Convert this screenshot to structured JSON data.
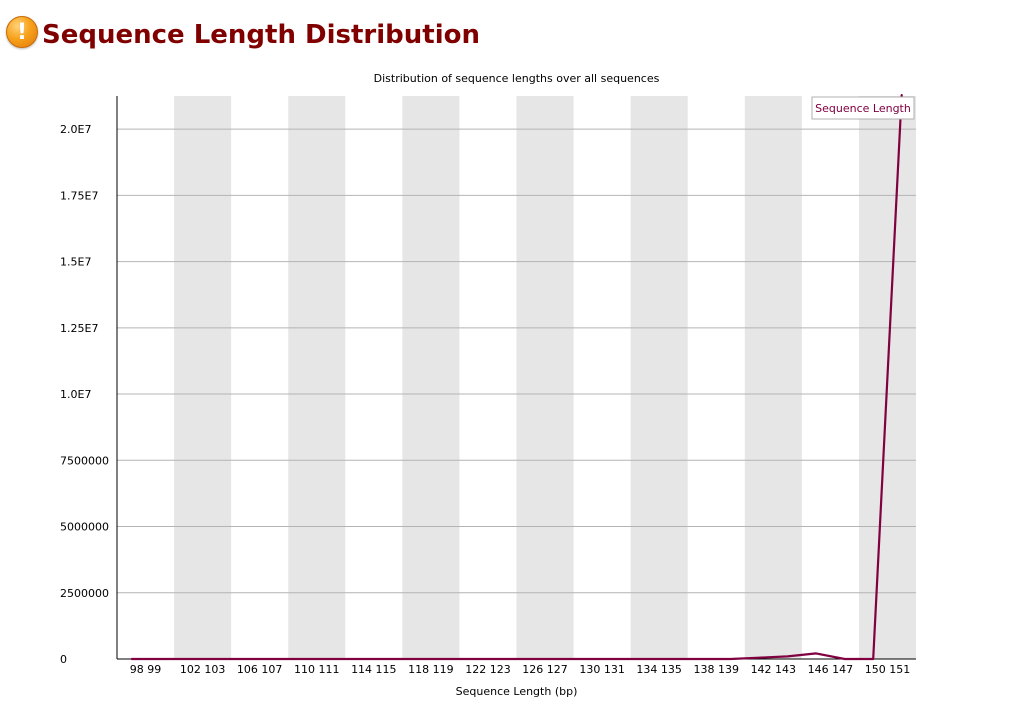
{
  "page": {
    "title": "Sequence Length Distribution",
    "status_icon": "warning-icon"
  },
  "chart_data": {
    "type": "line",
    "title": "Distribution of sequence lengths over all sequences",
    "xlabel": "Sequence Length (bp)",
    "ylabel": "",
    "categories": [
      "98",
      "99",
      "102",
      "103",
      "106",
      "107",
      "110",
      "111",
      "114",
      "115",
      "118",
      "119",
      "122",
      "123",
      "126",
      "127",
      "130",
      "131",
      "134",
      "135",
      "138",
      "139",
      "142",
      "143",
      "146",
      "147",
      "150",
      "151"
    ],
    "x_tick_labels": [
      "98 99",
      "102 103",
      "106 107",
      "110 111",
      "114 115",
      "118 119",
      "122 123",
      "126 127",
      "130 131",
      "134 135",
      "138 139",
      "142 143",
      "146 147",
      "150 151"
    ],
    "y_ticks": [
      0,
      2500000,
      5000000,
      7500000,
      10000000,
      12500000,
      15000000,
      17500000,
      20000000
    ],
    "y_tick_labels": [
      "0",
      "2500000",
      "5000000",
      "7500000",
      "1.0E7",
      "1.25E7",
      "1.5E7",
      "1.75E7",
      "2.0E7"
    ],
    "ylim": [
      0,
      21250000
    ],
    "grid": true,
    "legend": "top-right",
    "series": [
      {
        "name": "Sequence Length",
        "color": "#800040",
        "values": [
          0,
          0,
          0,
          0,
          0,
          0,
          0,
          0,
          0,
          0,
          0,
          0,
          0,
          0,
          0,
          0,
          0,
          0,
          0,
          0,
          0,
          0,
          50000,
          100000,
          210000,
          0,
          0,
          21300000
        ]
      }
    ]
  }
}
